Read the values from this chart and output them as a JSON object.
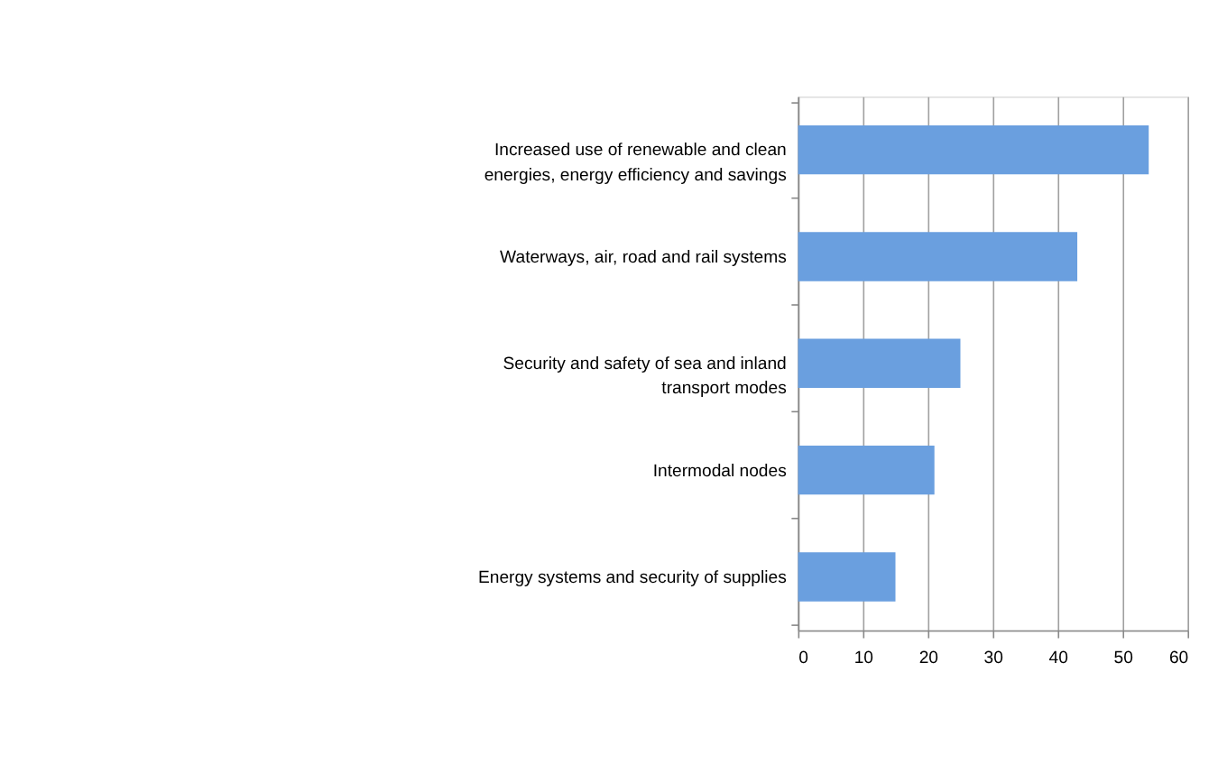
{
  "chart_data": {
    "type": "bar",
    "orientation": "horizontal",
    "categories": [
      "Increased use of renewable and clean energies, energy efficiency and savings",
      "Waterways, air, road and rail systems",
      "Security and safety of sea and inland transport modes",
      "Intermodal nodes",
      "Energy systems and security of supplies"
    ],
    "values": [
      54,
      43,
      25,
      21,
      15
    ],
    "color": "#6a9fdf",
    "xlim": [
      0,
      60
    ],
    "xticks": [
      0,
      10,
      20,
      30,
      40,
      50,
      60
    ],
    "grid": "x"
  }
}
